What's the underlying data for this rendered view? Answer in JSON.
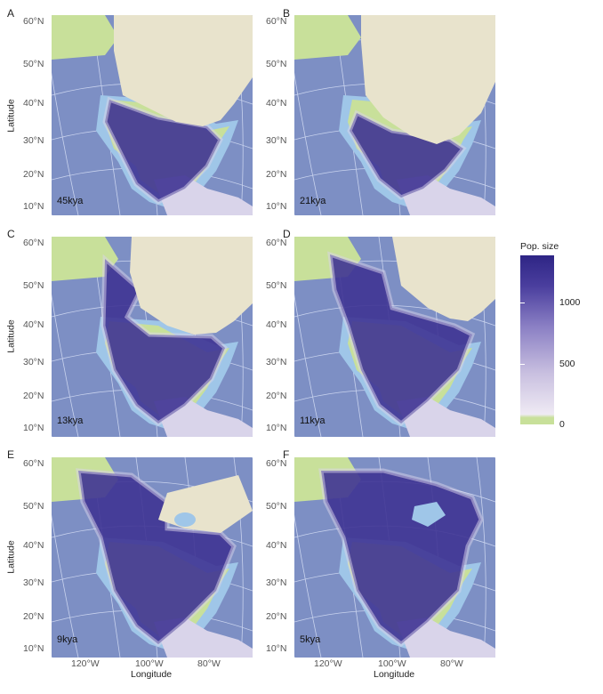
{
  "panels": [
    {
      "letter": "A",
      "era": "45kya"
    },
    {
      "letter": "B",
      "era": "21kya"
    },
    {
      "letter": "C",
      "era": "13kya"
    },
    {
      "letter": "D",
      "era": "11kya"
    },
    {
      "letter": "E",
      "era": "9kya"
    },
    {
      "letter": "F",
      "era": "5kya"
    }
  ],
  "axes": {
    "y_title": "Latitude",
    "x_title": "Longitude",
    "lat_ticks": [
      "60°N",
      "50°N",
      "40°N",
      "30°N",
      "20°N",
      "10°N"
    ],
    "lon_ticks": [
      "120°W",
      "100°W",
      "80°W"
    ]
  },
  "legend": {
    "title": "Pop. size",
    "ticks": [
      "1000",
      "500",
      "0"
    ],
    "colors": {
      "high": "#2e2585",
      "mid": "#8a7fc4",
      "low": "#efeaf4",
      "zero": "#c8e09a"
    }
  },
  "map_colors": {
    "ocean": "#7d8fc4",
    "shelf": "#9fc6e8",
    "ice": "#e8e3cc",
    "land_empty": "#c8e09a"
  }
}
